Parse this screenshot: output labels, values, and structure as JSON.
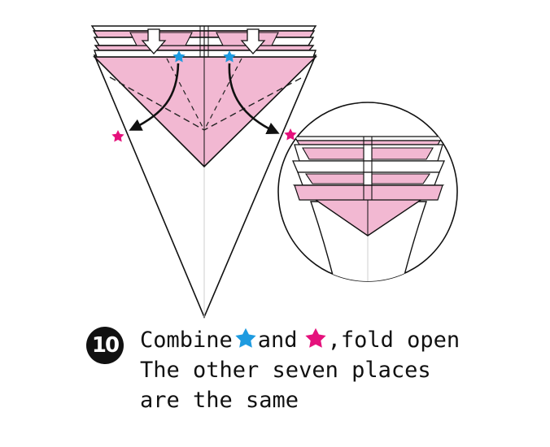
{
  "step": {
    "number": "10"
  },
  "instructions": {
    "line1": {
      "part1": "Combine",
      "part2": "and",
      "part3": ",fold open"
    },
    "line2": "The other seven places",
    "line3": "are the same"
  },
  "colors": {
    "paper_pink": "#f2b8d2",
    "star_blue": "#1e9be0",
    "star_magenta": "#e5117c",
    "line": "#111111",
    "badge": "#111111"
  },
  "icons": {
    "blue_star": "star-icon",
    "magenta_star": "star-icon",
    "fold_arrows": "down-arrow-icon",
    "curved_arrows": "curved-arrow-icon"
  }
}
